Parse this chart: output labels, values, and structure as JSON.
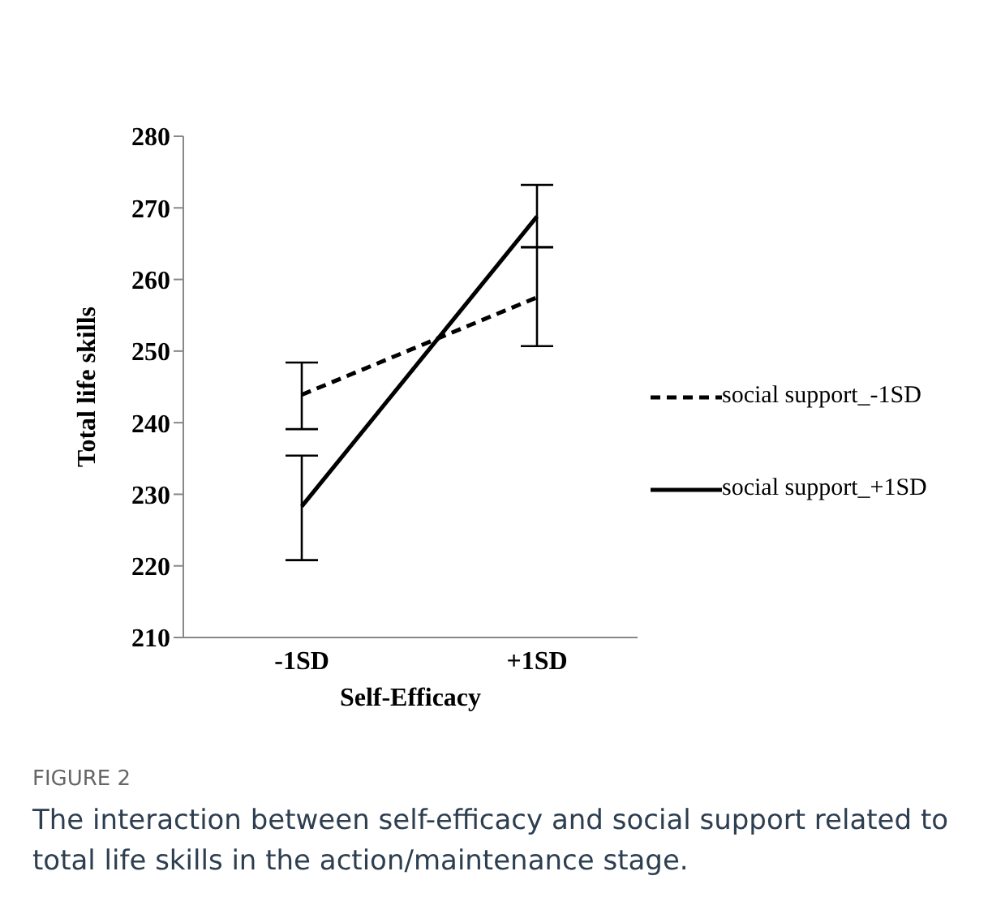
{
  "chart_data": {
    "type": "line",
    "xlabel": "Self-Efficacy",
    "ylabel": "Total life skills",
    "categories": [
      "-1SD",
      "+1SD"
    ],
    "series": [
      {
        "name": "social support_-1SD",
        "color": "#000000",
        "line_style": "dashed",
        "values": [
          243.9,
          257.5
        ],
        "errors": [
          [
            239.1,
            248.4
          ],
          [
            250.7,
            264.5
          ]
        ]
      },
      {
        "name": "social support_+1SD",
        "color": "#000000",
        "line_style": "solid",
        "values": [
          228.3,
          268.8
        ],
        "errors": [
          [
            220.8,
            235.4
          ],
          [
            264.5,
            273.2
          ]
        ]
      }
    ],
    "ylim": [
      210,
      280
    ],
    "yticks": [
      210,
      220,
      230,
      240,
      250,
      260,
      270,
      280
    ],
    "legend": "right",
    "marker": "none",
    "annotations": [
      "FIGURE 2",
      "The interaction between self-efficacy and social support related to total life skills in the action/maintenance stage."
    ]
  }
}
